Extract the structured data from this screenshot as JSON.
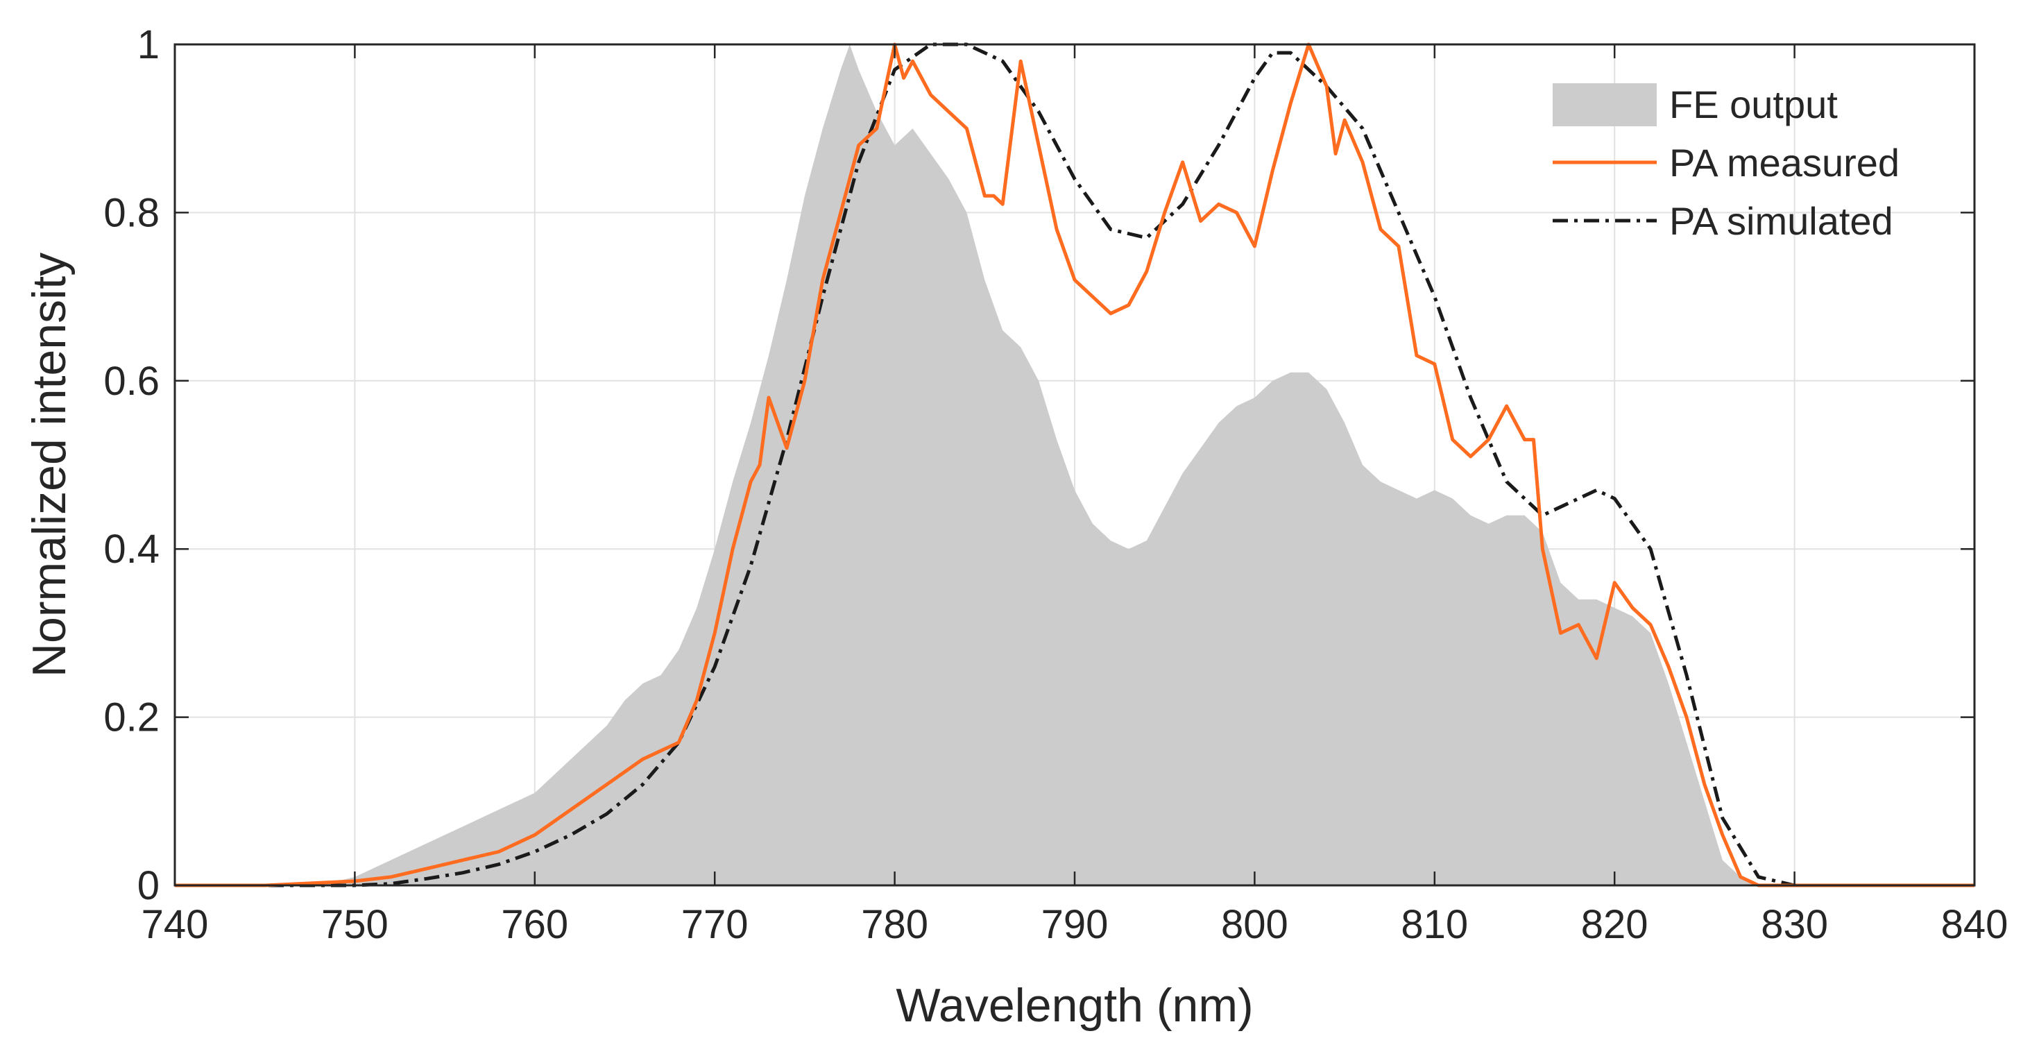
{
  "chart_data": {
    "type": "area+line",
    "title": "",
    "xlabel": "Wavelength (nm)",
    "ylabel": "Normalized intensity",
    "xlim": [
      740,
      840
    ],
    "ylim": [
      0,
      1
    ],
    "xticks": [
      740,
      750,
      760,
      770,
      780,
      790,
      800,
      810,
      820,
      830,
      840
    ],
    "xtick_labels": [
      "740",
      "750",
      "760",
      "770",
      "780",
      "790",
      "800",
      "810",
      "820",
      "830",
      "840"
    ],
    "yticks": [
      0,
      0.2,
      0.4,
      0.6,
      0.8,
      1
    ],
    "ytick_labels": [
      "0",
      "0.2",
      "0.4",
      "0.6",
      "0.8",
      "1"
    ],
    "grid": true,
    "legend_position": "top-right",
    "series": [
      {
        "name": "FE output",
        "kind": "area",
        "color": "#cccccc",
        "x": [
          740,
          748,
          750,
          752,
          754,
          756,
          758,
          760,
          762,
          764,
          765,
          766,
          767,
          768,
          769,
          770,
          771,
          772,
          773,
          774,
          775,
          776,
          777,
          777.5,
          778,
          779,
          780,
          781,
          782,
          783,
          784,
          785,
          786,
          787,
          788,
          789,
          790,
          791,
          792,
          793,
          794,
          795,
          796,
          797,
          798,
          799,
          800,
          801,
          802,
          803,
          804,
          805,
          806,
          807,
          808,
          809,
          810,
          811,
          812,
          813,
          814,
          815,
          816,
          817,
          818,
          819,
          820,
          821,
          822,
          823,
          824,
          825,
          826,
          827,
          828,
          830,
          840
        ],
        "values": [
          0,
          0,
          0.01,
          0.03,
          0.05,
          0.07,
          0.09,
          0.11,
          0.15,
          0.19,
          0.22,
          0.24,
          0.25,
          0.28,
          0.33,
          0.4,
          0.48,
          0.55,
          0.63,
          0.72,
          0.82,
          0.9,
          0.97,
          1.0,
          0.97,
          0.92,
          0.88,
          0.9,
          0.87,
          0.84,
          0.8,
          0.72,
          0.66,
          0.64,
          0.6,
          0.53,
          0.47,
          0.43,
          0.41,
          0.4,
          0.41,
          0.45,
          0.49,
          0.52,
          0.55,
          0.57,
          0.58,
          0.6,
          0.61,
          0.61,
          0.59,
          0.55,
          0.5,
          0.48,
          0.47,
          0.46,
          0.47,
          0.46,
          0.44,
          0.43,
          0.44,
          0.44,
          0.42,
          0.36,
          0.34,
          0.34,
          0.33,
          0.32,
          0.3,
          0.24,
          0.17,
          0.1,
          0.03,
          0.01,
          0,
          0,
          0
        ]
      },
      {
        "name": "PA measured",
        "kind": "line",
        "color": "#ff6b1f",
        "x": [
          740,
          745,
          750,
          752,
          754,
          756,
          758,
          760,
          762,
          764,
          766,
          768,
          769,
          770,
          771,
          772,
          772.5,
          773,
          774,
          775,
          776,
          777,
          778,
          779,
          780,
          780.5,
          781,
          782,
          783,
          784,
          785,
          785.5,
          786,
          787,
          788,
          789,
          790,
          791,
          792,
          793,
          794,
          795,
          796,
          797,
          798,
          799,
          800,
          801,
          802,
          803,
          804,
          804.5,
          805,
          806,
          807,
          808,
          809,
          810,
          811,
          812,
          813,
          814,
          815,
          815.5,
          816,
          817,
          818,
          819,
          820,
          821,
          822,
          823,
          824,
          825,
          826,
          827,
          828,
          830,
          840
        ],
        "values": [
          0,
          0,
          0.005,
          0.01,
          0.02,
          0.03,
          0.04,
          0.06,
          0.09,
          0.12,
          0.15,
          0.17,
          0.22,
          0.3,
          0.4,
          0.48,
          0.5,
          0.58,
          0.52,
          0.6,
          0.72,
          0.8,
          0.88,
          0.9,
          1.0,
          0.96,
          0.98,
          0.94,
          0.92,
          0.9,
          0.82,
          0.82,
          0.81,
          0.98,
          0.88,
          0.78,
          0.72,
          0.7,
          0.68,
          0.69,
          0.73,
          0.8,
          0.86,
          0.79,
          0.81,
          0.8,
          0.76,
          0.85,
          0.93,
          1.0,
          0.95,
          0.87,
          0.91,
          0.86,
          0.78,
          0.76,
          0.63,
          0.62,
          0.53,
          0.51,
          0.53,
          0.57,
          0.53,
          0.53,
          0.4,
          0.3,
          0.31,
          0.27,
          0.36,
          0.33,
          0.31,
          0.26,
          0.2,
          0.12,
          0.06,
          0.01,
          0,
          0,
          0
        ]
      },
      {
        "name": "PA simulated",
        "kind": "line",
        "style": "dash-dot",
        "color": "#1a1a1a",
        "x": [
          740,
          750,
          752,
          754,
          756,
          758,
          760,
          762,
          764,
          766,
          768,
          770,
          772,
          774,
          776,
          778,
          780,
          782,
          784,
          786,
          788,
          790,
          792,
          794,
          796,
          798,
          800,
          801,
          802,
          804,
          806,
          808,
          810,
          812,
          814,
          816,
          818,
          819,
          820,
          822,
          824,
          826,
          828,
          830,
          840
        ],
        "values": [
          0,
          0,
          0.002,
          0.008,
          0.015,
          0.025,
          0.04,
          0.06,
          0.085,
          0.12,
          0.17,
          0.26,
          0.38,
          0.53,
          0.7,
          0.86,
          0.97,
          1.0,
          1.0,
          0.98,
          0.92,
          0.84,
          0.78,
          0.77,
          0.81,
          0.88,
          0.96,
          0.99,
          0.99,
          0.95,
          0.9,
          0.8,
          0.7,
          0.58,
          0.48,
          0.44,
          0.46,
          0.47,
          0.46,
          0.4,
          0.25,
          0.08,
          0.01,
          0,
          0
        ]
      }
    ]
  }
}
